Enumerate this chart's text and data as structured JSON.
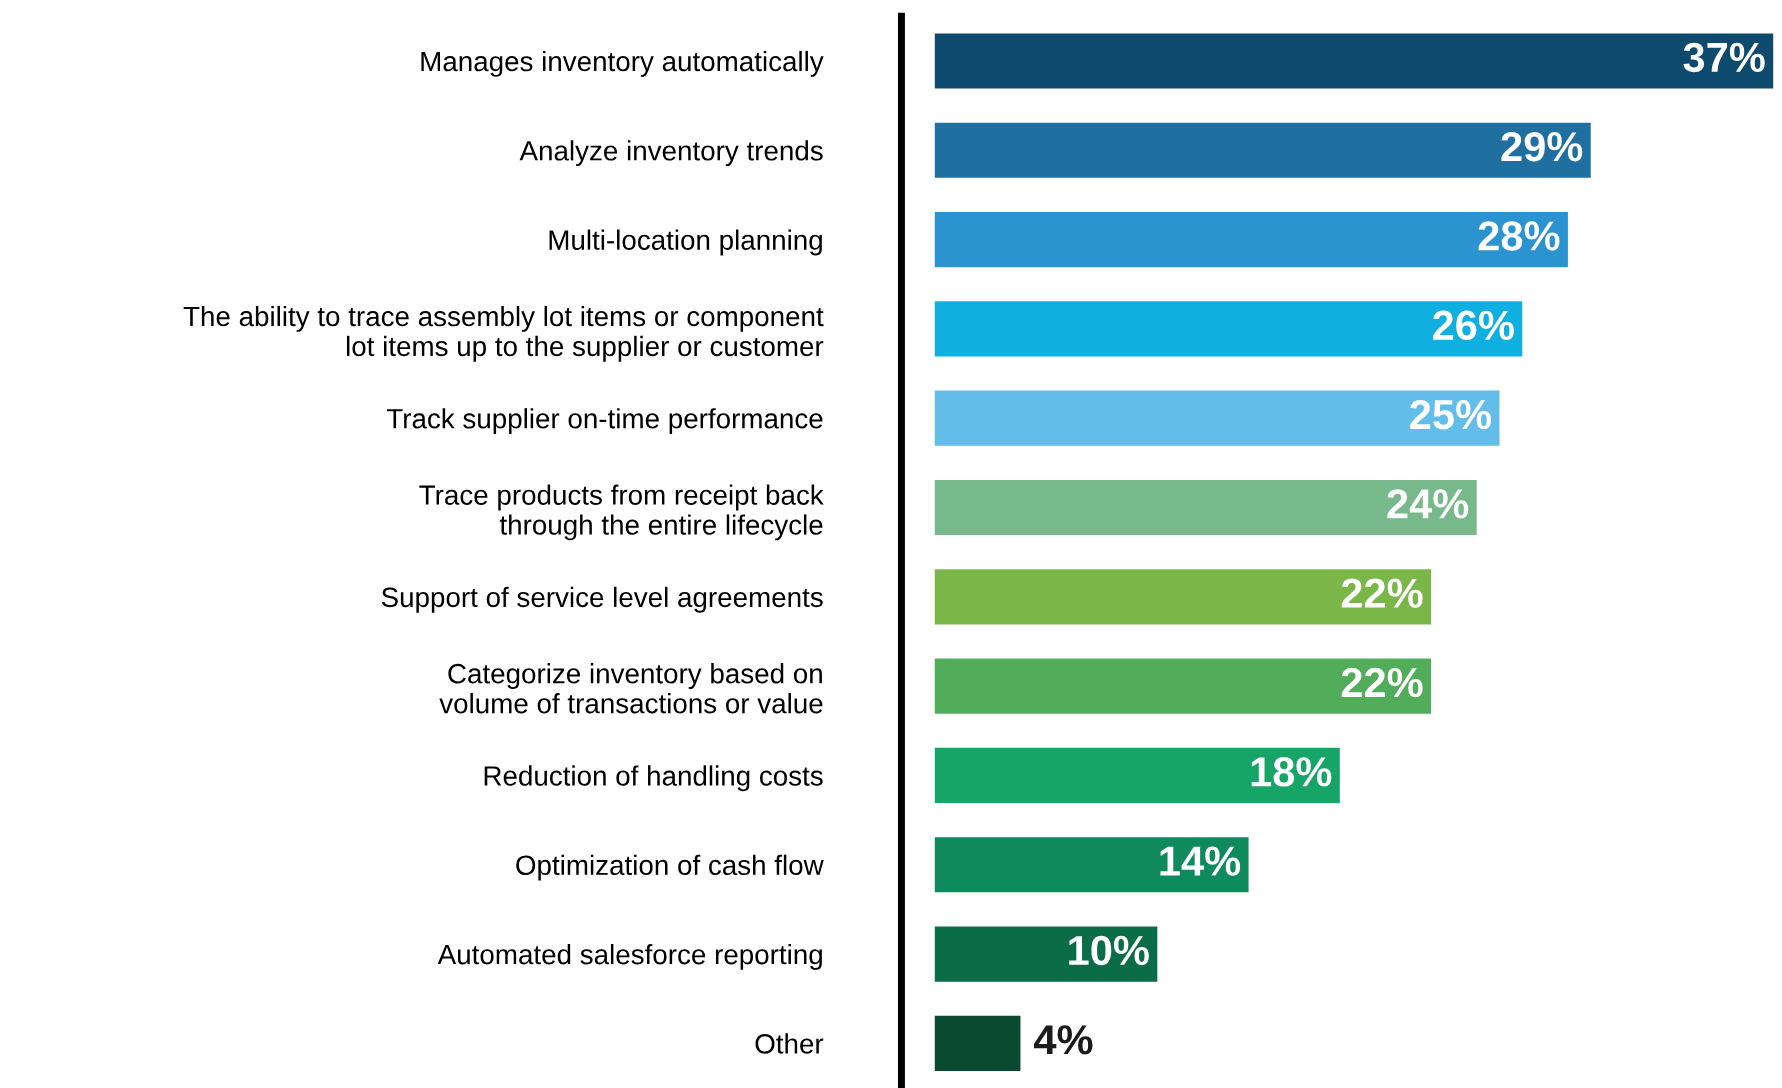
{
  "chart_data": {
    "type": "bar",
    "orientation": "horizontal",
    "categories": [
      "Manages inventory automatically",
      "Analyze inventory trends",
      "Multi-location planning",
      "The ability to trace assembly lot items or component\nlot items up to the supplier or customer",
      "Track supplier on-time performance",
      "Trace products from receipt back\nthrough the entire lifecycle",
      "Support of service level agreements",
      "Categorize inventory based on\nvolume of transactions or value",
      "Reduction of handling costs",
      "Optimization of cash flow",
      "Automated salesforce reporting",
      "Other"
    ],
    "values": [
      37,
      29,
      28,
      26,
      25,
      24,
      22,
      22,
      18,
      14,
      10,
      4
    ],
    "value_labels": [
      "37%",
      "29%",
      "28%",
      "26%",
      "25%",
      "24%",
      "22%",
      "22%",
      "18%",
      "14%",
      "10%",
      "4%"
    ],
    "colors": [
      "#0d4a6e",
      "#1f6fa0",
      "#2a93d0",
      "#0fb0e0",
      "#62bde8",
      "#77b98a",
      "#7ab648",
      "#52ad5a",
      "#16a566",
      "#0e8a5e",
      "#0b6d48",
      "#0a4a30"
    ],
    "xlim": [
      0,
      37
    ],
    "grid": false,
    "legend": false
  }
}
